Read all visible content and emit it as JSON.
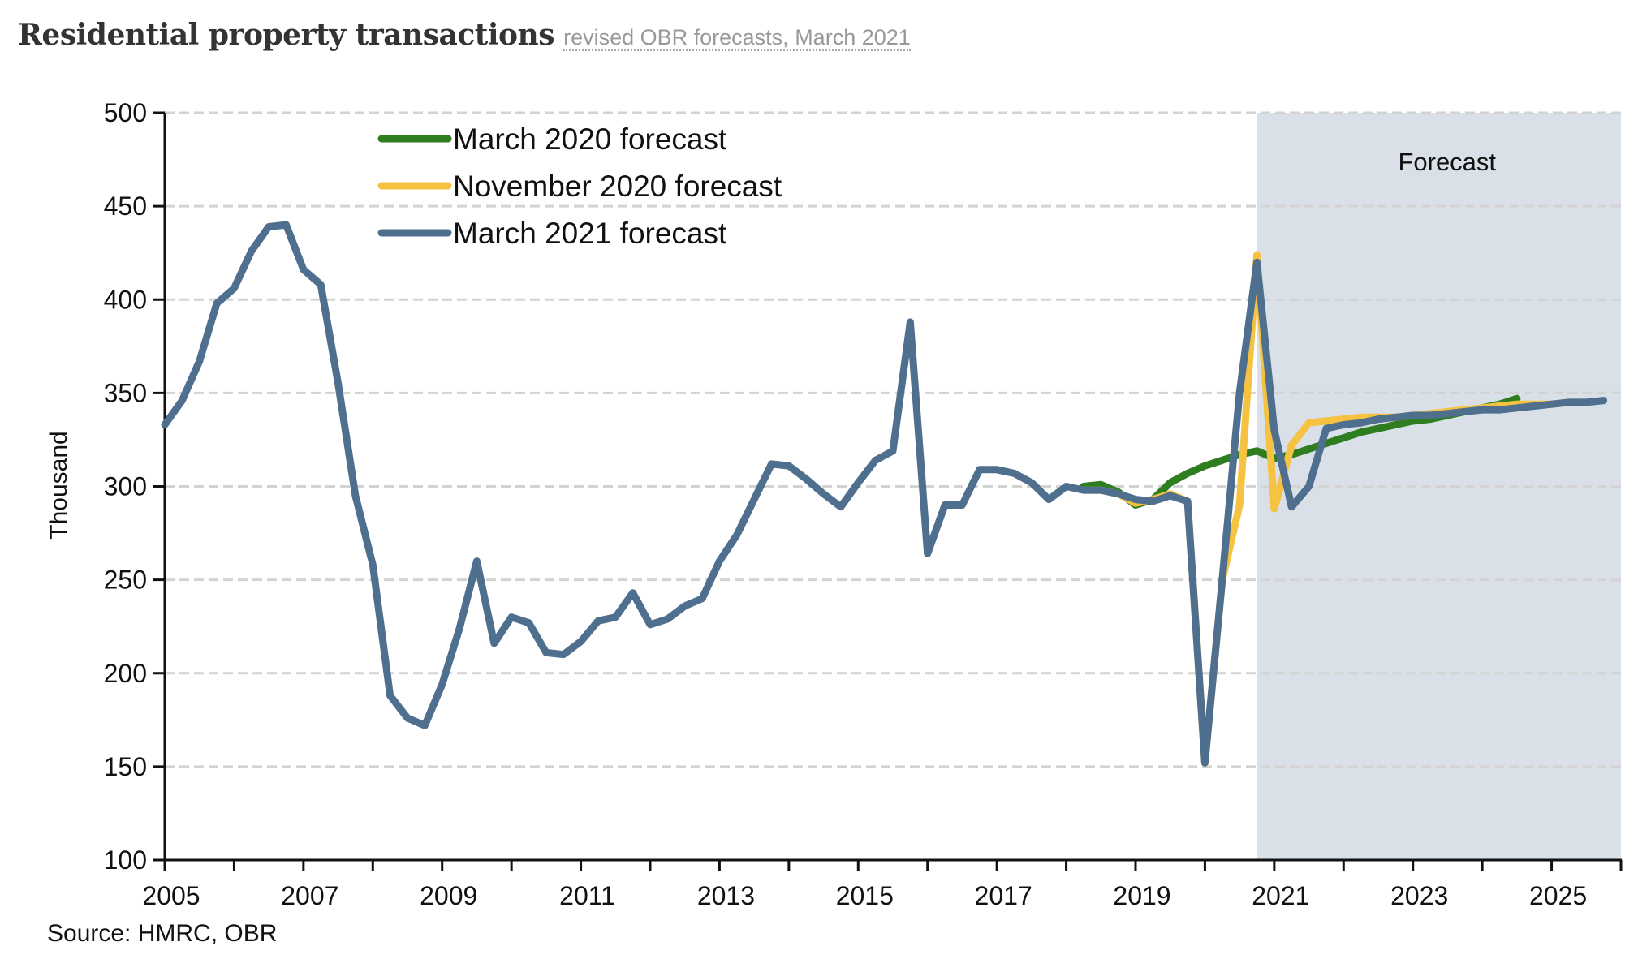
{
  "header": {
    "title": "Residential property transactions",
    "subtitle": "revised OBR forecasts, March 2021"
  },
  "chart_data": {
    "type": "line",
    "title": "Residential property transactions",
    "subtitle": "revised OBR forecasts, March 2021",
    "xlabel": "",
    "ylabel": "Thousand",
    "ylim": [
      100,
      500
    ],
    "xlim": [
      2005,
      2026
    ],
    "yticks": [
      100,
      150,
      200,
      250,
      300,
      350,
      400,
      450,
      500
    ],
    "xtick_labels": [
      "2005",
      "2007",
      "2009",
      "2011",
      "2013",
      "2015",
      "2017",
      "2019",
      "2021",
      "2023",
      "2025"
    ],
    "x_minor_ticks_every_year": true,
    "grid": "horizontal dashed",
    "legend_position": "top-left",
    "forecast_region": {
      "label": "Forecast",
      "from": 2020.75,
      "to": 2026,
      "color": "#dae0e7"
    },
    "source": "Source: HMRC, OBR",
    "x_start": 2005.0,
    "x_step": 0.25,
    "series": [
      {
        "name": "March 2020 forecast",
        "color": "#2e7d1f",
        "x_start": 2018.25,
        "values": [
          300,
          301,
          297,
          290,
          293,
          302,
          307,
          311,
          314,
          317,
          319,
          315,
          317,
          320,
          323,
          326,
          329,
          331,
          333,
          335,
          336,
          338,
          340,
          342,
          344,
          347
        ]
      },
      {
        "name": "November 2020 forecast",
        "color": "#f5c242",
        "x_start": 2018.25,
        "values": [
          298,
          298,
          296,
          291,
          293,
          296,
          292,
          152,
          250,
          290,
          424,
          288,
          322,
          334,
          335,
          336,
          337,
          337,
          337,
          338,
          339,
          340,
          341,
          342,
          343,
          344,
          344,
          344,
          345,
          345
        ]
      },
      {
        "name": "March 2021 forecast",
        "color": "#4f6f8f",
        "x_start": 2005.0,
        "values": [
          333,
          346,
          367,
          398,
          406,
          426,
          439,
          440,
          416,
          408,
          355,
          295,
          258,
          188,
          176,
          172,
          194,
          224,
          260,
          216,
          230,
          227,
          211,
          210,
          217,
          228,
          230,
          243,
          226,
          229,
          236,
          240,
          260,
          274,
          293,
          312,
          311,
          304,
          296,
          289,
          302,
          314,
          319,
          388,
          264,
          290,
          290,
          309,
          309,
          307,
          302,
          293,
          300,
          298,
          298,
          296,
          293,
          292,
          295,
          292,
          152,
          250,
          350,
          420,
          330,
          289,
          300,
          331,
          333,
          334,
          336,
          337,
          338,
          338,
          339,
          340,
          341,
          341,
          342,
          343,
          344,
          345,
          345,
          346
        ]
      }
    ]
  }
}
